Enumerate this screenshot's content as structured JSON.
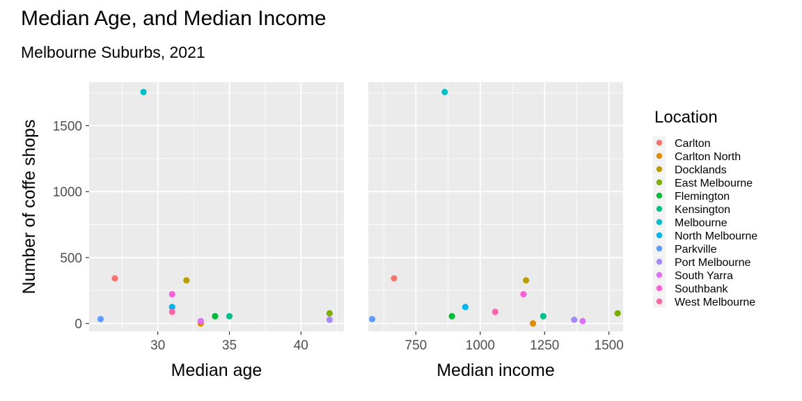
{
  "title": "Median Age, and Median Income",
  "subtitle": "Melbourne Suburbs, 2021",
  "chart_data": {
    "type": "scatter",
    "title": "Median Age, and Median Income",
    "subtitle": "Melbourne Suburbs, 2021",
    "ylabel": "Number of coffe shops",
    "legend": {
      "title": "Location",
      "placement": "right"
    },
    "grid": true,
    "panels": [
      {
        "xlabel": "Median age",
        "xlim": [
          25.2,
          43
        ],
        "xticks": [
          30,
          35,
          40
        ]
      },
      {
        "xlabel": "Median income",
        "xlim": [
          565,
          1555
        ],
        "xticks": [
          750,
          1000,
          1250,
          1500
        ]
      }
    ],
    "ylim": [
      -60,
      1830
    ],
    "yticks": [
      0,
      500,
      1000,
      1500
    ],
    "series": [
      {
        "name": "Carlton",
        "color": "#F8766D",
        "age": 27,
        "income": 665,
        "coffee_shops": 342
      },
      {
        "name": "Carlton North",
        "color": "#DE8C00",
        "age": 33,
        "income": 1205,
        "coffee_shops": 0
      },
      {
        "name": "Docklands",
        "color": "#B79F00",
        "age": 32,
        "income": 1178,
        "coffee_shops": 327
      },
      {
        "name": "East Melbourne",
        "color": "#7CAE00",
        "age": 42,
        "income": 1534,
        "coffee_shops": 77
      },
      {
        "name": "Flemington",
        "color": "#00BA38",
        "age": 34,
        "income": 890,
        "coffee_shops": 55
      },
      {
        "name": "Kensington",
        "color": "#00C08B",
        "age": 35,
        "income": 1245,
        "coffee_shops": 55
      },
      {
        "name": "Melbourne",
        "color": "#00BFC4",
        "age": 29,
        "income": 862,
        "coffee_shops": 1755
      },
      {
        "name": "North Melbourne",
        "color": "#00B4F0",
        "age": 31,
        "income": 942,
        "coffee_shops": 125
      },
      {
        "name": "Parkville",
        "color": "#619CFF",
        "age": 26,
        "income": 580,
        "coffee_shops": 33
      },
      {
        "name": "Port Melbourne",
        "color": "#A58AFF",
        "age": 42,
        "income": 1365,
        "coffee_shops": 28
      },
      {
        "name": "South Yarra",
        "color": "#DF70F8",
        "age": 33,
        "income": 1398,
        "coffee_shops": 18
      },
      {
        "name": "Southbank",
        "color": "#FB61D7",
        "age": 31,
        "income": 1168,
        "coffee_shops": 222
      },
      {
        "name": "West Melbourne",
        "color": "#FF66A8",
        "age": 31,
        "income": 1058,
        "coffee_shops": 88
      }
    ]
  }
}
